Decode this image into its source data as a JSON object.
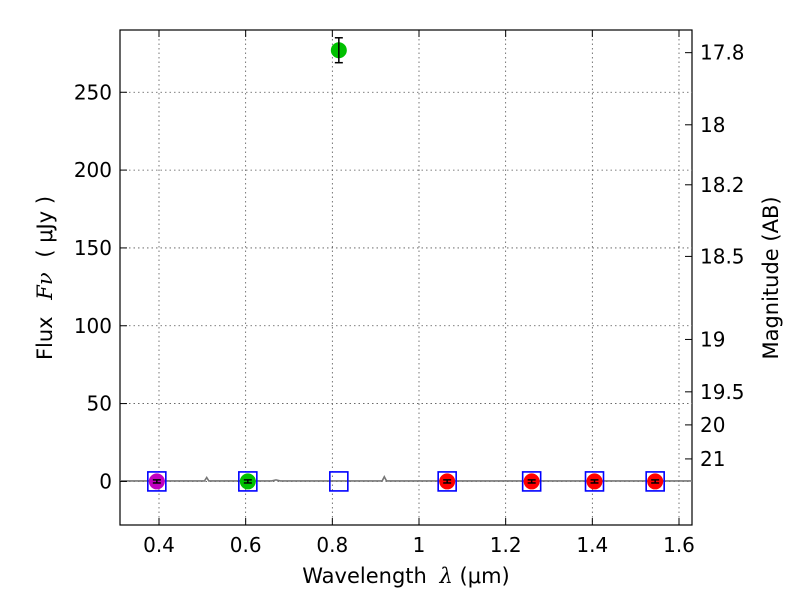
{
  "chart_data": {
    "type": "scatter",
    "xlabel_prefix": "Wavelength",
    "xlabel_symbol": "λ",
    "xlabel_unit": "(μm)",
    "ylabel_prefix": "Flux",
    "ylabel_symbol": "Fν",
    "ylabel_unit": "( μJy )",
    "y2label": "Magnitude (AB)",
    "xlim": [
      0.31,
      1.63
    ],
    "ylim": [
      -28,
      290
    ],
    "grid": true,
    "x_ticks": [
      0.4,
      0.6,
      0.8,
      1.0,
      1.2,
      1.4,
      1.6
    ],
    "x_tick_labels": [
      "0.4",
      "0.6",
      "0.8",
      "1",
      "1.2",
      "1.4",
      "1.6"
    ],
    "y_ticks": [
      0,
      50,
      100,
      150,
      200,
      250
    ],
    "y_tick_labels": [
      "0",
      "50",
      "100",
      "150",
      "200",
      "250"
    ],
    "mag_ticks": [
      17.8,
      18,
      18.2,
      18.5,
      19,
      19.5,
      20,
      21
    ],
    "mag_tick_labels": [
      "17.8",
      "18",
      "18.2",
      "18.5",
      "19",
      "19.5",
      "20",
      "21"
    ],
    "observed_points": [
      {
        "x": 0.395,
        "y": 0,
        "err": 1,
        "color": "#c000c0"
      },
      {
        "x": 0.605,
        "y": 0,
        "err": 1,
        "color": "#00c000"
      },
      {
        "x": 0.815,
        "y": 277,
        "err": 8,
        "color": "#00c000"
      },
      {
        "x": 1.065,
        "y": 0,
        "err": 1,
        "color": "#ff0000"
      },
      {
        "x": 1.26,
        "y": 0,
        "err": 1,
        "color": "#ff0000"
      },
      {
        "x": 1.405,
        "y": 0,
        "err": 1,
        "color": "#ff0000"
      },
      {
        "x": 1.545,
        "y": 0,
        "err": 1,
        "color": "#ff0000"
      }
    ],
    "model_points": {
      "x": [
        0.395,
        0.605,
        0.815,
        1.065,
        1.26,
        1.405,
        1.545
      ],
      "y": [
        0,
        0,
        0,
        0,
        0,
        0,
        0
      ],
      "color": "#0000ff"
    },
    "spectrum": {
      "color": "#777777",
      "points": [
        [
          0.31,
          0.3
        ],
        [
          0.5,
          0.3
        ],
        [
          0.505,
          0.3
        ],
        [
          0.51,
          2.5
        ],
        [
          0.515,
          0.3
        ],
        [
          0.66,
          0.3
        ],
        [
          0.67,
          1.0
        ],
        [
          0.68,
          0.3
        ],
        [
          0.915,
          0.3
        ],
        [
          0.92,
          3.0
        ],
        [
          0.925,
          0.3
        ],
        [
          1.63,
          0.3
        ]
      ]
    },
    "colors": {
      "axes": "#000000",
      "grid": "#555555"
    }
  }
}
